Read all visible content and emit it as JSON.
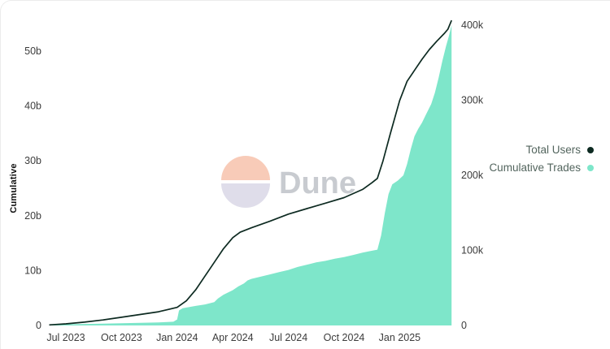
{
  "watermark": {
    "text": "Dune",
    "top_color": "#f8c9b5",
    "bottom_color": "#dedce9",
    "text_color": "#c6c9ce"
  },
  "chart_data": {
    "type": "area",
    "title": "",
    "ylabel": "Cumulative",
    "grid": "off",
    "legend_position": "right",
    "x_axis": {
      "tick_labels": [
        "Jul 2023",
        "Oct 2023",
        "Jan 2024",
        "Apr 2024",
        "Jul 2024",
        "Oct 2024",
        "Jan 2025"
      ],
      "tick_months": [
        0,
        3,
        6,
        9,
        12,
        15,
        18
      ],
      "x_unit": "months_since_jul_2023"
    },
    "left_axis": {
      "tick_labels": [
        "0",
        "10b",
        "20b",
        "30b",
        "40b",
        "50b"
      ],
      "tick_values": [
        0,
        10,
        20,
        30,
        40,
        50
      ],
      "ylim": [
        0,
        57
      ],
      "unit": "billions"
    },
    "right_axis": {
      "tick_labels": [
        "0",
        "100k",
        "200k",
        "300k",
        "400k"
      ],
      "tick_values": [
        0,
        100,
        200,
        300,
        400
      ],
      "ylim": [
        0,
        410
      ],
      "unit": "thousands"
    },
    "series": [
      {
        "name": "Total Users",
        "type": "line",
        "axis": "left",
        "color": "#0d2a21",
        "unit": "b",
        "points": [
          [
            -0.9,
            0.1
          ],
          [
            0,
            0.3
          ],
          [
            1,
            0.6
          ],
          [
            2,
            1.0
          ],
          [
            3,
            1.5
          ],
          [
            4,
            2.0
          ],
          [
            5,
            2.5
          ],
          [
            6,
            3.3
          ],
          [
            6.5,
            4.5
          ],
          [
            7,
            6.5
          ],
          [
            7.5,
            9.0
          ],
          [
            8,
            11.5
          ],
          [
            8.5,
            14.0
          ],
          [
            9,
            16.0
          ],
          [
            9.4,
            17.0
          ],
          [
            10,
            17.8
          ],
          [
            11,
            19.0
          ],
          [
            12,
            20.3
          ],
          [
            13,
            21.3
          ],
          [
            14,
            22.3
          ],
          [
            15,
            23.3
          ],
          [
            16,
            24.8
          ],
          [
            16.5,
            26.0
          ],
          [
            16.8,
            26.8
          ],
          [
            17.1,
            30.0
          ],
          [
            17.5,
            35.0
          ],
          [
            18,
            41.0
          ],
          [
            18.4,
            44.5
          ],
          [
            18.8,
            46.5
          ],
          [
            19.2,
            48.5
          ],
          [
            19.6,
            50.3
          ],
          [
            20,
            51.8
          ],
          [
            20.4,
            53.2
          ],
          [
            20.6,
            54.0
          ],
          [
            20.8,
            55.6
          ]
        ]
      },
      {
        "name": "Cumulative Trades",
        "type": "area",
        "axis": "right",
        "color": "#7ee6ca",
        "unit": "k",
        "points": [
          [
            -0.9,
            1
          ],
          [
            0,
            1.5
          ],
          [
            1,
            2
          ],
          [
            2,
            2.5
          ],
          [
            3,
            3
          ],
          [
            4,
            3.5
          ],
          [
            5,
            4
          ],
          [
            5.8,
            5
          ],
          [
            6,
            8
          ],
          [
            6.1,
            20
          ],
          [
            6.3,
            23
          ],
          [
            7,
            26
          ],
          [
            7.5,
            28
          ],
          [
            8,
            31
          ],
          [
            8.2,
            36
          ],
          [
            8.5,
            41
          ],
          [
            9,
            47
          ],
          [
            9.3,
            52
          ],
          [
            9.6,
            56
          ],
          [
            9.8,
            60
          ],
          [
            10,
            62
          ],
          [
            10.5,
            65
          ],
          [
            11,
            68
          ],
          [
            11.5,
            71
          ],
          [
            12,
            74
          ],
          [
            12.5,
            78
          ],
          [
            13,
            81
          ],
          [
            13.5,
            84
          ],
          [
            14,
            86
          ],
          [
            14.5,
            89
          ],
          [
            15,
            91
          ],
          [
            15.5,
            94
          ],
          [
            16,
            97
          ],
          [
            16.4,
            99
          ],
          [
            16.8,
            101
          ],
          [
            17,
            120
          ],
          [
            17.2,
            150
          ],
          [
            17.4,
            175
          ],
          [
            17.6,
            188
          ],
          [
            17.9,
            193
          ],
          [
            18.2,
            200
          ],
          [
            18.4,
            215
          ],
          [
            18.6,
            235
          ],
          [
            18.8,
            252
          ],
          [
            19,
            262
          ],
          [
            19.2,
            270
          ],
          [
            19.4,
            280
          ],
          [
            19.7,
            295
          ],
          [
            19.9,
            310
          ],
          [
            20.1,
            330
          ],
          [
            20.3,
            352
          ],
          [
            20.5,
            372
          ],
          [
            20.65,
            385
          ],
          [
            20.8,
            400
          ]
        ]
      }
    ]
  }
}
